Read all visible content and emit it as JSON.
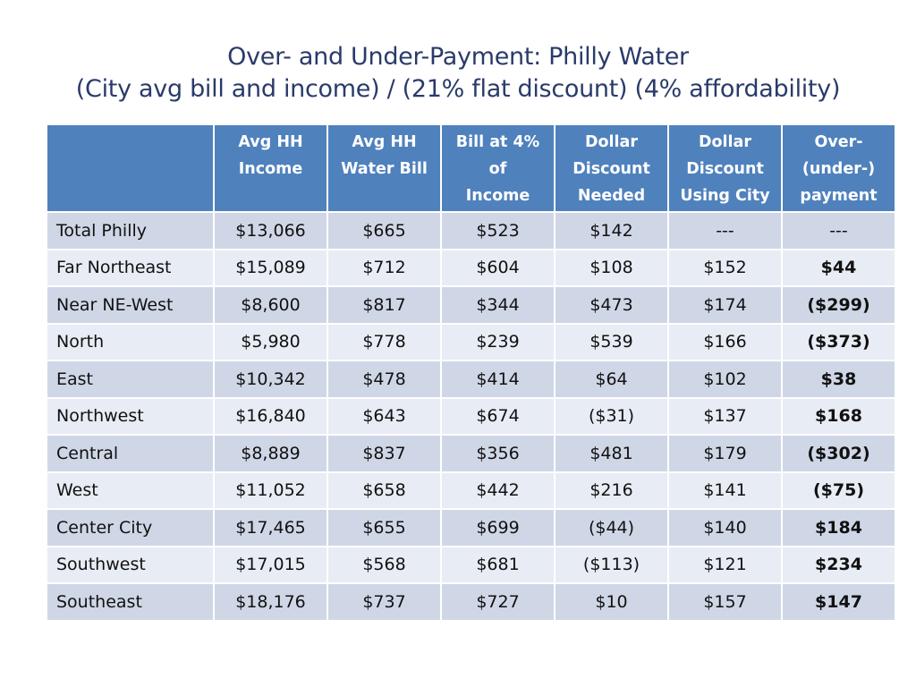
{
  "slide": {
    "title_line1": "Over- and Under-Payment: Philly Water",
    "title_line2": "(City avg bill and income) / (21% flat discount) (4% affordability)"
  },
  "table": {
    "headers": [
      {
        "lines": []
      },
      {
        "lines": [
          "Avg HH",
          "Income"
        ]
      },
      {
        "lines": [
          "Avg HH",
          "Water Bill"
        ]
      },
      {
        "lines": [
          "Bill at 4%",
          "of",
          "Income"
        ]
      },
      {
        "lines": [
          "Dollar",
          "Discount",
          "Needed"
        ]
      },
      {
        "lines": [
          "Dollar",
          "Discount",
          "Using City"
        ]
      },
      {
        "lines": [
          "Over-",
          "(under-)",
          "payment"
        ]
      }
    ],
    "rows": [
      [
        "Total Philly",
        "$13,066",
        "$665",
        "$523",
        "$142",
        "---",
        "---"
      ],
      [
        "Far Northeast",
        "$15,089",
        "$712",
        "$604",
        "$108",
        "$152",
        "$44"
      ],
      [
        "Near NE-West",
        "$8,600",
        "$817",
        "$344",
        "$473",
        "$174",
        "($299)"
      ],
      [
        "North",
        "$5,980",
        "$778",
        "$239",
        "$539",
        "$166",
        "($373)"
      ],
      [
        "East",
        "$10,342",
        "$478",
        "$414",
        "$64",
        "$102",
        "$38"
      ],
      [
        "Northwest",
        "$16,840",
        "$643",
        "$674",
        "($31)",
        "$137",
        "$168"
      ],
      [
        "Central",
        "$8,889",
        "$837",
        "$356",
        "$481",
        "$179",
        "($302)"
      ],
      [
        "West",
        "$11,052",
        "$658",
        "$442",
        "$216",
        "$141",
        "($75)"
      ],
      [
        "Center City",
        "$17,465",
        "$655",
        "$699",
        "($44)",
        "$140",
        "$184"
      ],
      [
        "Southwest",
        "$17,015",
        "$568",
        "$681",
        "($113)",
        "$121",
        "$234"
      ],
      [
        "Southeast",
        "$18,176",
        "$737",
        "$727",
        "$10",
        "$157",
        "$147"
      ]
    ]
  },
  "colors": {
    "title": "#2a3b6a",
    "header_bg": "#4f81bd",
    "row_odd": "#cfd7e7",
    "row_even": "#e8ecf4"
  }
}
